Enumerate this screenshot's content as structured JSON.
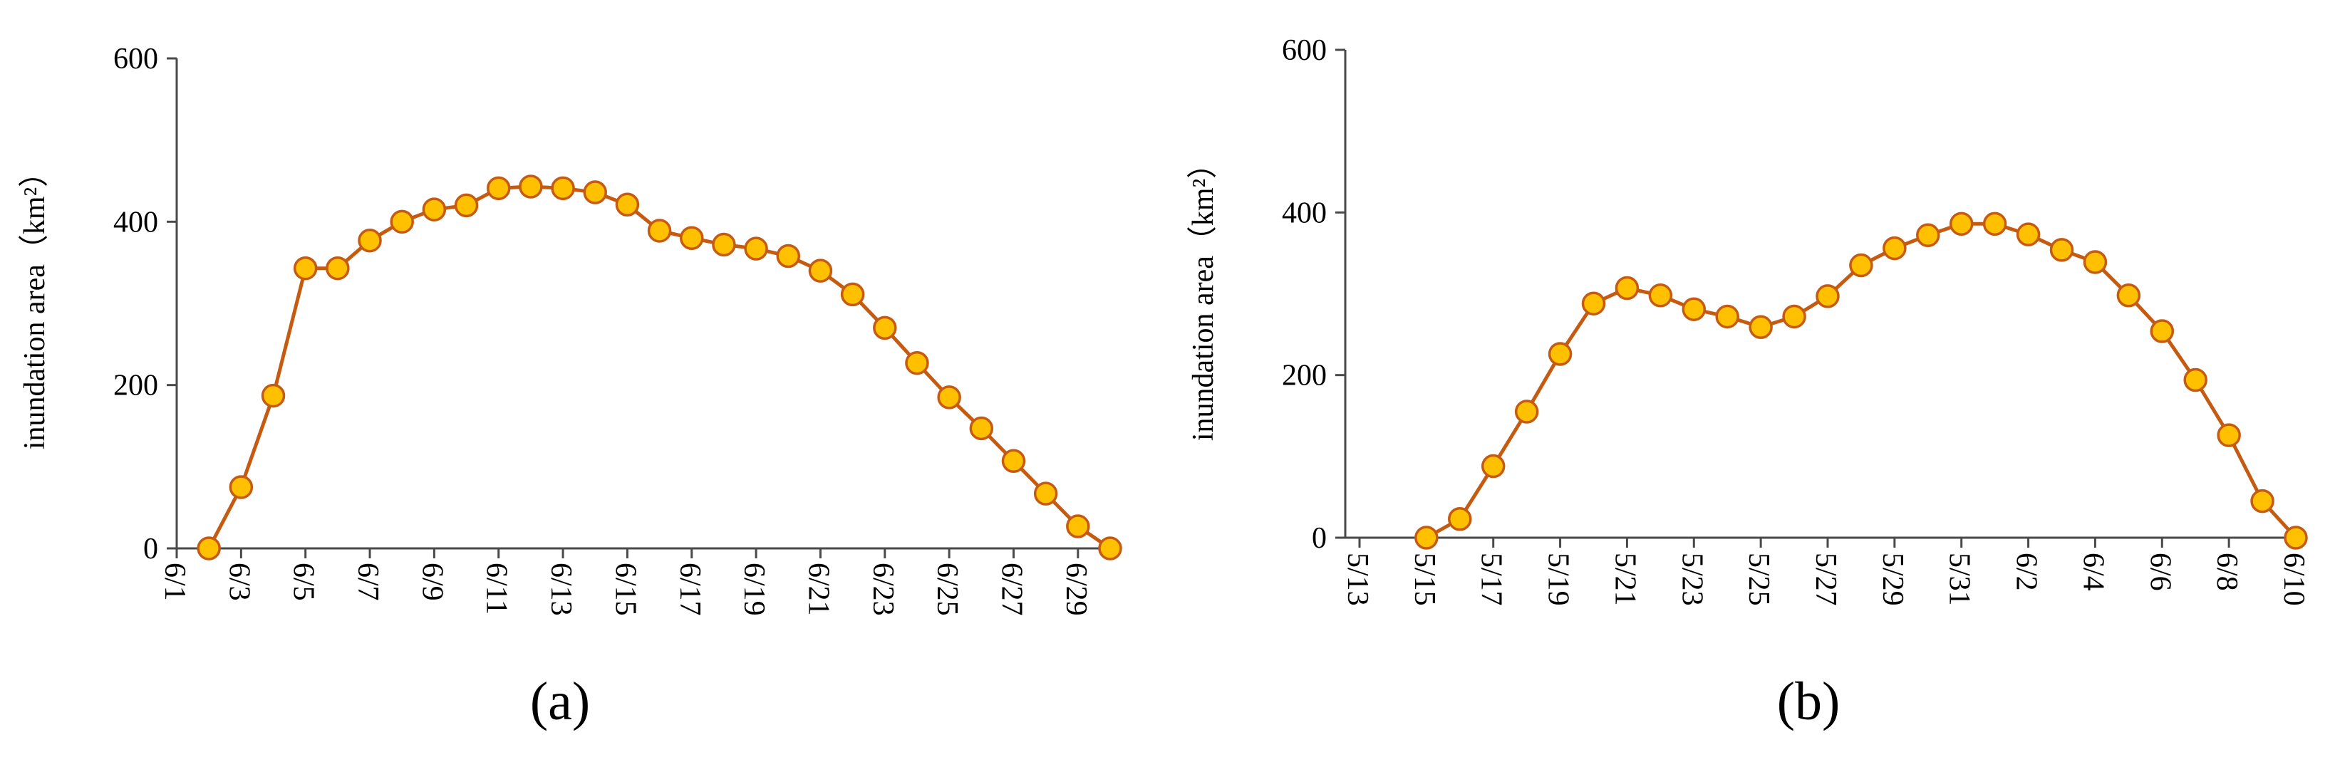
{
  "chart_data": [
    {
      "type": "line",
      "panel_label": "(a)",
      "ylabel": "inundation area（km²）",
      "ylim": [
        0,
        600
      ],
      "yticks": [
        0,
        200,
        400,
        600
      ],
      "xticks": [
        "6/1",
        "6/3",
        "6/5",
        "6/7",
        "6/9",
        "6/11",
        "6/13",
        "6/15",
        "6/17",
        "6/19",
        "6/21",
        "6/23",
        "6/25",
        "6/27",
        "6/29"
      ],
      "x_start": "6/1",
      "x_end": "6/30",
      "grid": false,
      "line_color": "#c55a11",
      "marker_fill": "#ffc000",
      "marker_edge": "#c55a11",
      "series": [
        {
          "dates": [
            "6/2",
            "6/3",
            "6/4",
            "6/5",
            "6/6",
            "6/7",
            "6/8",
            "6/9",
            "6/10",
            "6/11",
            "6/12",
            "6/13",
            "6/14",
            "6/15",
            "6/16",
            "6/17",
            "6/18",
            "6/19",
            "6/20",
            "6/21",
            "6/22",
            "6/23",
            "6/24",
            "6/25",
            "6/26",
            "6/27",
            "6/28",
            "6/29",
            "6/30"
          ],
          "values": [
            0,
            75,
            187,
            343,
            343,
            377,
            400,
            415,
            420,
            441,
            443,
            441,
            436,
            421,
            389,
            380,
            372,
            367,
            358,
            340,
            311,
            270,
            227,
            185,
            147,
            107,
            67,
            27,
            0
          ]
        }
      ]
    },
    {
      "type": "line",
      "panel_label": "(b)",
      "ylabel": "inundation area（km²）",
      "ylim": [
        0,
        600
      ],
      "yticks": [
        0,
        200,
        400,
        600
      ],
      "xticks": [
        "5/13",
        "5/15",
        "5/17",
        "5/19",
        "5/21",
        "5/23",
        "5/25",
        "5/27",
        "5/29",
        "5/31",
        "6/2",
        "6/4",
        "6/6",
        "6/8",
        "6/10"
      ],
      "x_start": "5/13",
      "x_end": "6/10",
      "grid": false,
      "line_color": "#c55a11",
      "marker_fill": "#ffc000",
      "marker_edge": "#c55a11",
      "series": [
        {
          "dates": [
            "5/15",
            "5/16",
            "5/17",
            "5/18",
            "5/19",
            "5/20",
            "5/21",
            "5/22",
            "5/23",
            "5/24",
            "5/25",
            "5/26",
            "5/27",
            "5/28",
            "5/29",
            "5/30",
            "5/31",
            "6/1",
            "6/2",
            "6/3",
            "6/4",
            "6/5",
            "6/6",
            "6/7",
            "6/8",
            "6/9",
            "6/10"
          ],
          "values": [
            0,
            23,
            88,
            155,
            226,
            288,
            307,
            298,
            281,
            272,
            259,
            272,
            297,
            335,
            356,
            372,
            386,
            386,
            373,
            354,
            339,
            298,
            254,
            194,
            126,
            45,
            0
          ]
        }
      ]
    }
  ]
}
